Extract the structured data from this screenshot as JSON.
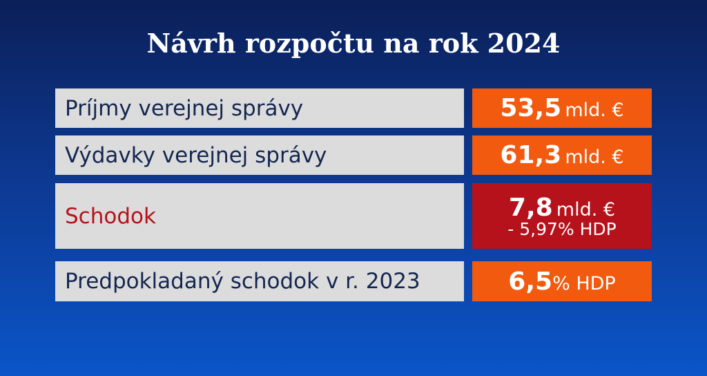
{
  "title": "Návrh rozpočtu na rok 2024",
  "rows": [
    {
      "label": "Príjmy verejnej správy",
      "value": "53,5",
      "unit": "mld. €"
    },
    {
      "label": "Výdavky verejnej správy",
      "value": "61,3",
      "unit": "mld. €"
    },
    {
      "label": "Schodok",
      "value": "7,8",
      "unit": "mld. €",
      "note": "- 5,97% HDP"
    },
    {
      "label": "Predpokladaný schodok v r. 2023",
      "value": "6,5",
      "unit": "% HDP"
    }
  ]
}
